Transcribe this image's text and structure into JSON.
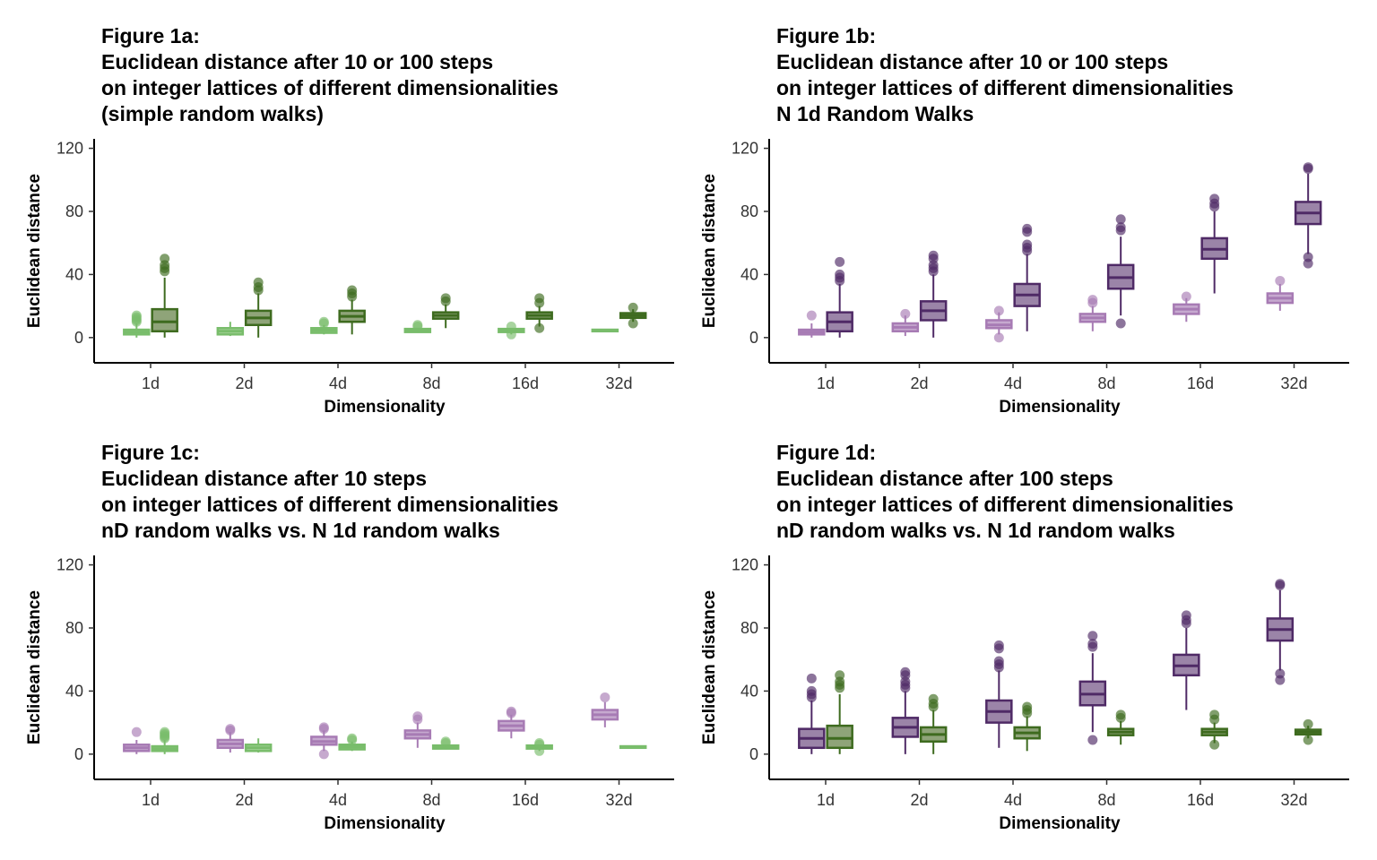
{
  "colors": {
    "purple_dark": "#4f2a66",
    "purple_dark_fill": "#9b84a8",
    "purple_light": "#a77bb4",
    "purple_light_fill": "#c6a9cf",
    "green_dark": "#3e6b1f",
    "green_dark_fill": "#8fa479",
    "green_light": "#79bd6b",
    "green_light_fill": "#a6d39a"
  },
  "chart_data": [
    {
      "id": "fig1a",
      "type": "box",
      "title_lines": [
        "Figure 1a:",
        "Euclidean distance after 10 or 100 steps",
        "on integer lattices of different dimensionalities",
        "(simple random walks)"
      ],
      "xlabel": "Dimensionality",
      "ylabel": "Euclidean distance",
      "categories": [
        "1d",
        "2d",
        "4d",
        "8d",
        "16d",
        "32d"
      ],
      "yticks": [
        0,
        40,
        80,
        120
      ],
      "ylim": [
        -16,
        126
      ],
      "series": [
        {
          "style": "green_light",
          "offset": -0.15,
          "boxes": [
            {
              "min": 0,
              "q1": 2,
              "med": 3.5,
              "q3": 5,
              "max": 9,
              "outliers": [
                10,
                11,
                12,
                13,
                14
              ]
            },
            {
              "min": 1,
              "q1": 2,
              "med": 4,
              "q3": 6,
              "max": 10,
              "outliers": []
            },
            {
              "min": 2,
              "q1": 3,
              "med": 4.5,
              "q3": 6,
              "max": 8,
              "outliers": [
                9,
                10
              ]
            },
            {
              "min": 3,
              "q1": 3.5,
              "med": 4.5,
              "q3": 5.5,
              "max": 6,
              "outliers": [
                7,
                8
              ]
            },
            {
              "min": 2,
              "q1": 3.5,
              "med": 4.5,
              "q3": 5.5,
              "max": 6,
              "outliers": [
                2,
                7
              ]
            },
            {
              "min": 4,
              "q1": 4,
              "med": 4.5,
              "q3": 5,
              "max": 5,
              "outliers": []
            }
          ]
        },
        {
          "style": "green_dark",
          "offset": 0.15,
          "boxes": [
            {
              "min": 0,
              "q1": 4,
              "med": 10,
              "q3": 18,
              "max": 38,
              "outliers": [
                42,
                44,
                46,
                50
              ]
            },
            {
              "min": 0,
              "q1": 8,
              "med": 12.5,
              "q3": 17,
              "max": 28,
              "outliers": [
                30,
                32,
                35
              ]
            },
            {
              "min": 2,
              "q1": 10,
              "med": 13.5,
              "q3": 17,
              "max": 24,
              "outliers": [
                26,
                28,
                30
              ]
            },
            {
              "min": 6,
              "q1": 12,
              "med": 14,
              "q3": 16,
              "max": 21,
              "outliers": [
                23,
                25
              ]
            },
            {
              "min": 7,
              "q1": 12,
              "med": 14,
              "q3": 16,
              "max": 20,
              "outliers": [
                6,
                22,
                25
              ]
            },
            {
              "min": 10,
              "q1": 12.5,
              "med": 14,
              "q3": 15.5,
              "max": 18,
              "outliers": [
                9,
                19
              ]
            }
          ]
        }
      ]
    },
    {
      "id": "fig1b",
      "type": "box",
      "title_lines": [
        "Figure 1b:",
        "Euclidean distance after 10 or 100 steps",
        "on integer lattices of different dimensionalities",
        "N 1d Random Walks"
      ],
      "xlabel": "Dimensionality",
      "ylabel": "Euclidean distance",
      "categories": [
        "1d",
        "2d",
        "4d",
        "8d",
        "16d",
        "32d"
      ],
      "yticks": [
        0,
        40,
        80,
        120
      ],
      "ylim": [
        -16,
        126
      ],
      "series": [
        {
          "style": "purple_light",
          "offset": -0.15,
          "boxes": [
            {
              "min": 0,
              "q1": 2,
              "med": 3.5,
              "q3": 5,
              "max": 9,
              "outliers": [
                14
              ]
            },
            {
              "min": 1,
              "q1": 4,
              "med": 6.5,
              "q3": 9,
              "max": 14,
              "outliers": [
                15
              ]
            },
            {
              "min": 2,
              "q1": 6,
              "med": 8,
              "q3": 11,
              "max": 16,
              "outliers": [
                0,
                17
              ]
            },
            {
              "min": 4,
              "q1": 10,
              "med": 12.5,
              "q3": 15,
              "max": 20,
              "outliers": [
                22,
                24
              ]
            },
            {
              "min": 10,
              "q1": 15,
              "med": 18,
              "q3": 21,
              "max": 25,
              "outliers": [
                26
              ]
            },
            {
              "min": 17,
              "q1": 22,
              "med": 25,
              "q3": 28,
              "max": 34,
              "outliers": [
                36
              ]
            }
          ]
        },
        {
          "style": "purple_dark",
          "offset": 0.15,
          "boxes": [
            {
              "min": 0,
              "q1": 4,
              "med": 10,
              "q3": 16,
              "max": 34,
              "outliers": [
                36,
                38,
                40,
                48
              ]
            },
            {
              "min": 0,
              "q1": 11,
              "med": 17,
              "q3": 23,
              "max": 40,
              "outliers": [
                42,
                44,
                46,
                50,
                52
              ]
            },
            {
              "min": 4,
              "q1": 20,
              "med": 27,
              "q3": 34,
              "max": 53,
              "outliers": [
                55,
                57,
                59,
                67,
                69
              ]
            },
            {
              "min": 14,
              "q1": 31,
              "med": 38,
              "q3": 46,
              "max": 64,
              "outliers": [
                9,
                68,
                70,
                75
              ]
            },
            {
              "min": 28,
              "q1": 50,
              "med": 56,
              "q3": 63,
              "max": 80,
              "outliers": [
                83,
                85,
                88
              ]
            },
            {
              "min": 53,
              "q1": 72,
              "med": 79,
              "q3": 86,
              "max": 104,
              "outliers": [
                47,
                51,
                107,
                108
              ]
            }
          ]
        }
      ]
    },
    {
      "id": "fig1c",
      "type": "box",
      "title_lines": [
        "Figure 1c:",
        "Euclidean distance after 10 steps",
        "on integer lattices of different dimensionalities",
        "nD random walks vs. N 1d random walks"
      ],
      "xlabel": "Dimensionality",
      "ylabel": "Euclidean distance",
      "categories": [
        "1d",
        "2d",
        "4d",
        "8d",
        "16d",
        "32d"
      ],
      "yticks": [
        0,
        40,
        80,
        120
      ],
      "ylim": [
        -16,
        126
      ],
      "series": [
        {
          "style": "purple_light",
          "offset": -0.15,
          "boxes": [
            {
              "min": 0,
              "q1": 2,
              "med": 4,
              "q3": 6,
              "max": 9,
              "outliers": [
                14
              ]
            },
            {
              "min": 1,
              "q1": 4,
              "med": 6.5,
              "q3": 9,
              "max": 14,
              "outliers": [
                15,
                16
              ]
            },
            {
              "min": 2,
              "q1": 6,
              "med": 8,
              "q3": 11,
              "max": 15,
              "outliers": [
                0,
                16,
                17
              ]
            },
            {
              "min": 4,
              "q1": 10,
              "med": 12.5,
              "q3": 15,
              "max": 20,
              "outliers": [
                22,
                24
              ]
            },
            {
              "min": 10,
              "q1": 15,
              "med": 18,
              "q3": 21,
              "max": 25,
              "outliers": [
                26,
                27
              ]
            },
            {
              "min": 17,
              "q1": 22,
              "med": 25,
              "q3": 28,
              "max": 33,
              "outliers": [
                36
              ]
            }
          ]
        },
        {
          "style": "green_light",
          "offset": 0.15,
          "boxes": [
            {
              "min": 0,
              "q1": 2,
              "med": 3.5,
              "q3": 5,
              "max": 9,
              "outliers": [
                10,
                11,
                12,
                13,
                14
              ]
            },
            {
              "min": 1,
              "q1": 2,
              "med": 4,
              "q3": 6,
              "max": 10,
              "outliers": []
            },
            {
              "min": 2,
              "q1": 3,
              "med": 4.5,
              "q3": 6,
              "max": 8,
              "outliers": [
                9,
                10
              ]
            },
            {
              "min": 3,
              "q1": 3.5,
              "med": 4.5,
              "q3": 5.5,
              "max": 6,
              "outliers": [
                7,
                8
              ]
            },
            {
              "min": 2,
              "q1": 3.5,
              "med": 4.5,
              "q3": 5.5,
              "max": 6,
              "outliers": [
                2,
                6,
                7
              ]
            },
            {
              "min": 4,
              "q1": 4,
              "med": 4.5,
              "q3": 5,
              "max": 5,
              "outliers": []
            }
          ]
        }
      ]
    },
    {
      "id": "fig1d",
      "type": "box",
      "title_lines": [
        "Figure 1d:",
        "Euclidean distance after 100 steps",
        "on integer lattices of different dimensionalities",
        "nD random walks vs. N 1d random walks"
      ],
      "xlabel": "Dimensionality",
      "ylabel": "Euclidean distance",
      "categories": [
        "1d",
        "2d",
        "4d",
        "8d",
        "16d",
        "32d"
      ],
      "yticks": [
        0,
        40,
        80,
        120
      ],
      "ylim": [
        -16,
        126
      ],
      "series": [
        {
          "style": "purple_dark",
          "offset": -0.15,
          "boxes": [
            {
              "min": 0,
              "q1": 4,
              "med": 10,
              "q3": 16,
              "max": 34,
              "outliers": [
                36,
                38,
                40,
                48
              ]
            },
            {
              "min": 0,
              "q1": 11,
              "med": 17,
              "q3": 23,
              "max": 40,
              "outliers": [
                42,
                44,
                46,
                50,
                52
              ]
            },
            {
              "min": 4,
              "q1": 20,
              "med": 27,
              "q3": 34,
              "max": 53,
              "outliers": [
                55,
                57,
                59,
                67,
                69
              ]
            },
            {
              "min": 14,
              "q1": 31,
              "med": 38,
              "q3": 46,
              "max": 64,
              "outliers": [
                9,
                68,
                70,
                75
              ]
            },
            {
              "min": 28,
              "q1": 50,
              "med": 56,
              "q3": 63,
              "max": 80,
              "outliers": [
                83,
                85,
                88
              ]
            },
            {
              "min": 53,
              "q1": 72,
              "med": 79,
              "q3": 86,
              "max": 104,
              "outliers": [
                47,
                51,
                107,
                108
              ]
            }
          ]
        },
        {
          "style": "green_dark",
          "offset": 0.15,
          "boxes": [
            {
              "min": 0,
              "q1": 4,
              "med": 10,
              "q3": 18,
              "max": 38,
              "outliers": [
                42,
                44,
                46,
                50
              ]
            },
            {
              "min": 0,
              "q1": 8,
              "med": 12.5,
              "q3": 17,
              "max": 28,
              "outliers": [
                30,
                32,
                35
              ]
            },
            {
              "min": 2,
              "q1": 10,
              "med": 13.5,
              "q3": 17,
              "max": 24,
              "outliers": [
                26,
                28,
                30
              ]
            },
            {
              "min": 6,
              "q1": 12,
              "med": 14,
              "q3": 16,
              "max": 21,
              "outliers": [
                23,
                25
              ]
            },
            {
              "min": 7,
              "q1": 12,
              "med": 14,
              "q3": 16,
              "max": 20,
              "outliers": [
                6,
                22,
                25
              ]
            },
            {
              "min": 10,
              "q1": 12.5,
              "med": 14,
              "q3": 15.5,
              "max": 18,
              "outliers": [
                9,
                19
              ]
            }
          ]
        }
      ]
    }
  ]
}
